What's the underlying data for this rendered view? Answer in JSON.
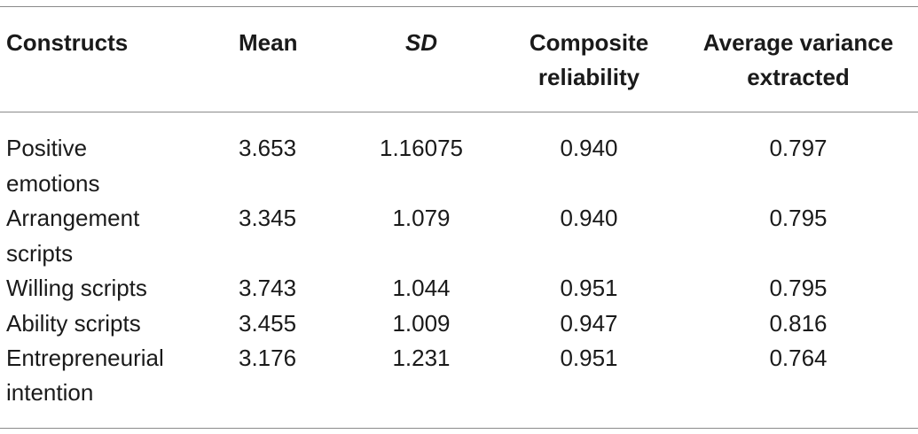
{
  "table": {
    "headers": {
      "constructs": "Constructs",
      "mean": "Mean",
      "sd": "SD",
      "composite_line1": "Composite",
      "composite_line2": "reliability",
      "ave_line1": "Average variance",
      "ave_line2": "extracted"
    },
    "rows": [
      {
        "construct_line1": "Positive",
        "construct_line2": "emotions",
        "mean": "3.653",
        "sd": "1.16075",
        "cr": "0.940",
        "ave": "0.797"
      },
      {
        "construct_line1": "Arrangement",
        "construct_line2": "scripts",
        "mean": "3.345",
        "sd": "1.079",
        "cr": "0.940",
        "ave": "0.795"
      },
      {
        "construct_line1": "Willing scripts",
        "construct_line2": "",
        "mean": "3.743",
        "sd": "1.044",
        "cr": "0.951",
        "ave": "0.795"
      },
      {
        "construct_line1": "Ability scripts",
        "construct_line2": "",
        "mean": "3.455",
        "sd": "1.009",
        "cr": "0.947",
        "ave": "0.816"
      },
      {
        "construct_line1": "Entrepreneurial",
        "construct_line2": "intention",
        "mean": "3.176",
        "sd": "1.231",
        "cr": "0.951",
        "ave": "0.764"
      }
    ]
  }
}
